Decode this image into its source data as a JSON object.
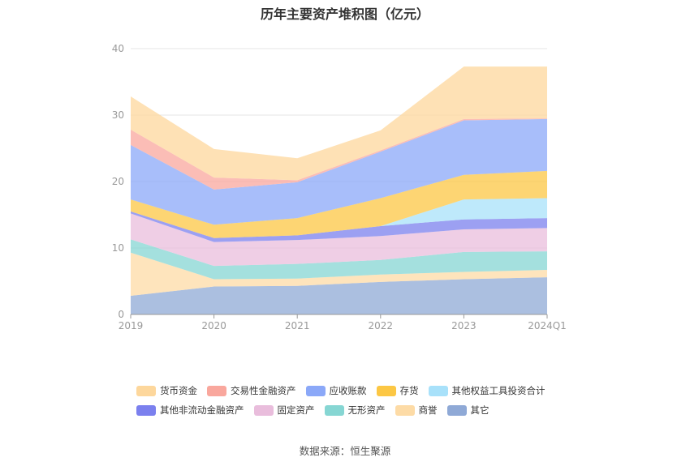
{
  "title": "历年主要资产堆积图（亿元）",
  "source": "数据来源：恒生聚源",
  "chart_data": {
    "type": "area",
    "stacked": true,
    "title": "历年主要资产堆积图（亿元）",
    "x": [
      "2019",
      "2020",
      "2021",
      "2022",
      "2023",
      "2024Q1"
    ],
    "ylim": [
      0,
      40
    ],
    "yticks": [
      0,
      10,
      20,
      30,
      40
    ],
    "grid": true,
    "legend_position": "bottom",
    "series": [
      {
        "name": "其它",
        "color": "#8fa9d6",
        "values": [
          2.8,
          4.2,
          4.3,
          4.9,
          5.3,
          5.6
        ]
      },
      {
        "name": "商誉",
        "color": "#fddba6",
        "values": [
          6.5,
          1.1,
          1.1,
          1.1,
          1.1,
          1.1
        ]
      },
      {
        "name": "无形资产",
        "color": "#86d6d3",
        "values": [
          2.0,
          2.0,
          2.2,
          2.2,
          3.0,
          2.8
        ]
      },
      {
        "name": "固定资产",
        "color": "#e9bddc",
        "values": [
          3.9,
          3.6,
          3.6,
          3.6,
          3.4,
          3.5
        ]
      },
      {
        "name": "其他非流动金融资产",
        "color": "#7b80ee",
        "values": [
          0.3,
          0.6,
          0.7,
          1.5,
          1.5,
          1.5
        ]
      },
      {
        "name": "其他权益工具投资合计",
        "color": "#a8e1fa",
        "values": [
          0,
          0,
          0,
          0,
          3.0,
          3.0
        ]
      },
      {
        "name": "存货",
        "color": "#fcc744",
        "values": [
          1.8,
          2.0,
          2.6,
          4.2,
          3.7,
          4.1
        ]
      },
      {
        "name": "应收账款",
        "color": "#8ba8f8",
        "values": [
          8.2,
          5.3,
          5.4,
          7.0,
          8.2,
          7.8
        ]
      },
      {
        "name": "交易性金融资产",
        "color": "#f9a79d",
        "values": [
          2.3,
          1.8,
          0.3,
          0.2,
          0.2,
          0.1
        ]
      },
      {
        "name": "货币资金",
        "color": "#fdd79c",
        "values": [
          5.0,
          4.3,
          3.3,
          3.0,
          7.9,
          7.8
        ]
      }
    ]
  },
  "legend": [
    {
      "name": "货币资金",
      "color": "#fdd79c"
    },
    {
      "name": "交易性金融资产",
      "color": "#f9a79d"
    },
    {
      "name": "应收账款",
      "color": "#8ba8f8"
    },
    {
      "name": "存货",
      "color": "#fcc744"
    },
    {
      "name": "其他权益工具投资合计",
      "color": "#a8e1fa"
    },
    {
      "name": "其他非流动金融资产",
      "color": "#7b80ee"
    },
    {
      "name": "固定资产",
      "color": "#e9bddc"
    },
    {
      "name": "无形资产",
      "color": "#86d6d3"
    },
    {
      "name": "商誉",
      "color": "#fddba6"
    },
    {
      "name": "其它",
      "color": "#8fa9d6"
    }
  ]
}
